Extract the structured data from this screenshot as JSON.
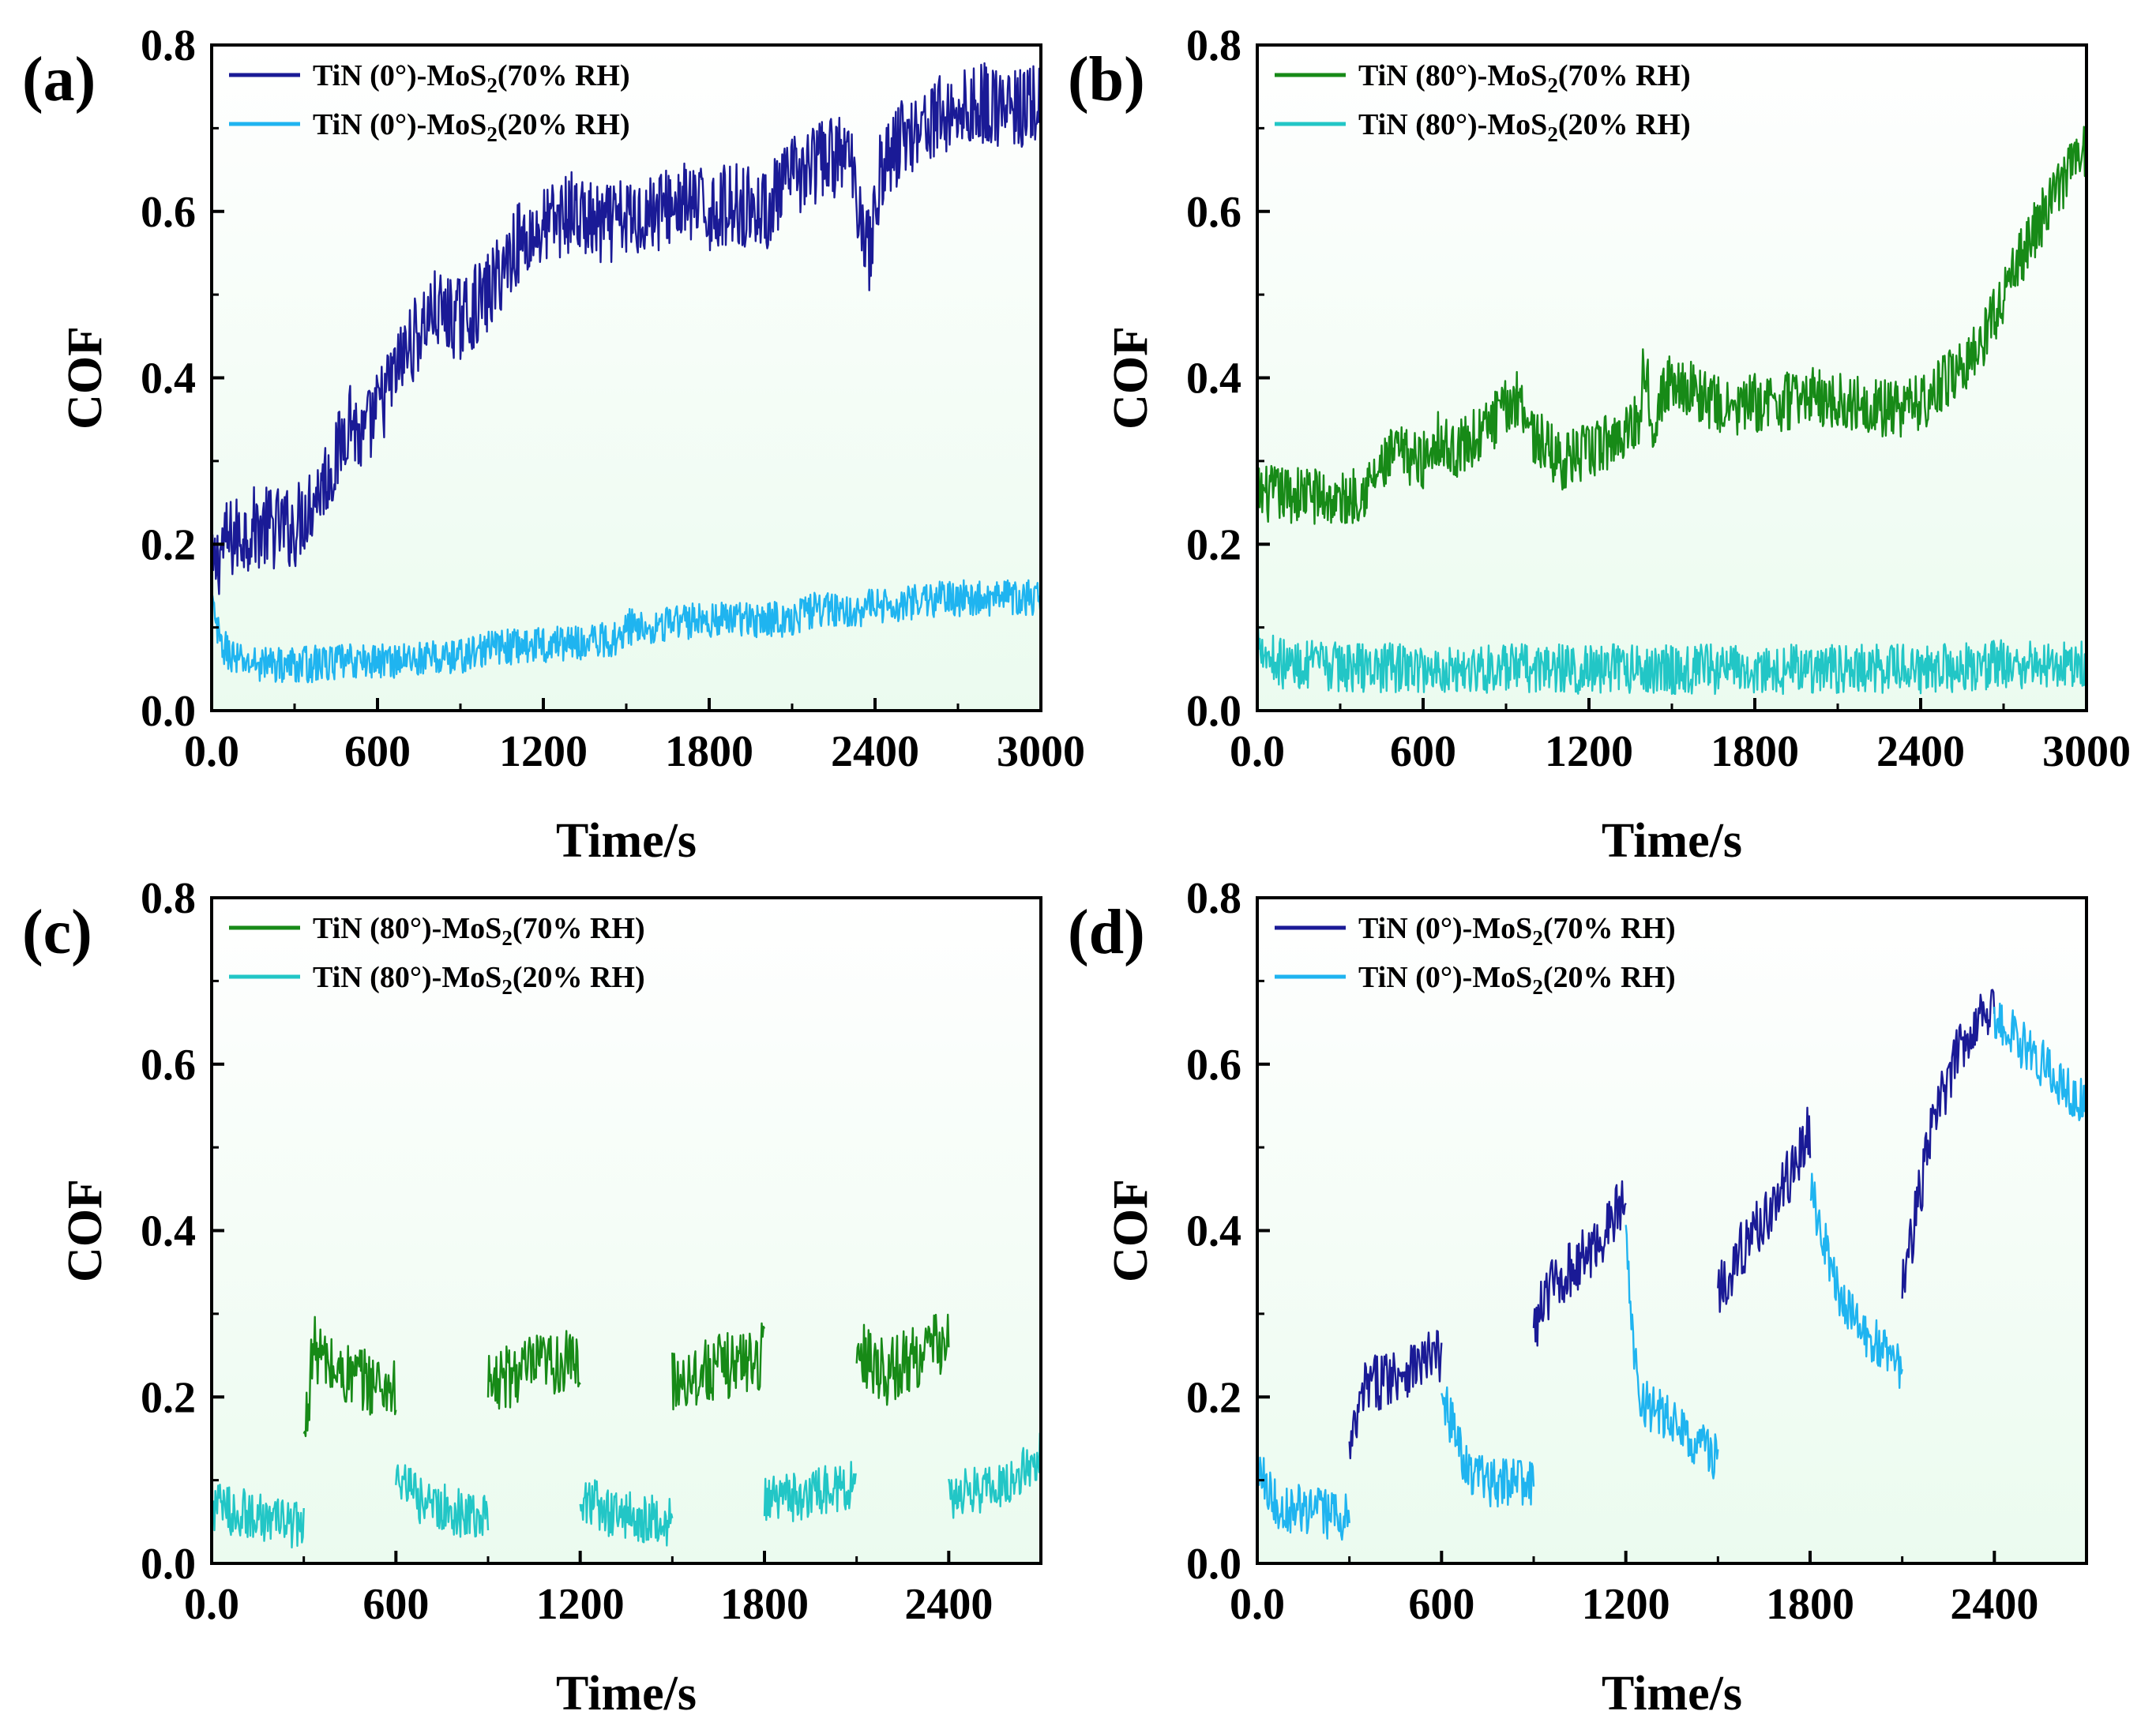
{
  "figure": {
    "panels": [
      {
        "id": "a",
        "panel_label": "(a)",
        "chart_data": {
          "type": "line",
          "xlabel": "Time/s",
          "ylabel": "COF",
          "xlim": [
            0,
            3000
          ],
          "ylim": [
            0,
            0.8
          ],
          "xticks": [
            0,
            600,
            1200,
            1800,
            2400,
            3000
          ],
          "yticks": [
            0.0,
            0.2,
            0.4,
            0.6,
            0.8
          ],
          "grid": false,
          "legend_position": "top-left",
          "background_color": "#ebfbef",
          "series": [
            {
              "name": "TiN (0°)-MoS2(70% RH)",
              "legend": {
                "prefix": "TiN (0°)-MoS",
                "sub": "2",
                "suffix": "(70% RH)"
              },
              "color": "#1a1a96",
              "band": 0.05,
              "points": [
                [
                  0,
                  0.16
                ],
                [
                  40,
                  0.2
                ],
                [
                  150,
                  0.22
                ],
                [
                  300,
                  0.22
                ],
                [
                  450,
                  0.3
                ],
                [
                  500,
                  0.36
                ],
                [
                  540,
                  0.32
                ],
                [
                  600,
                  0.36
                ],
                [
                  700,
                  0.43
                ],
                [
                  800,
                  0.48
                ],
                [
                  900,
                  0.47
                ],
                [
                  1000,
                  0.5
                ],
                [
                  1100,
                  0.56
                ],
                [
                  1200,
                  0.58
                ],
                [
                  1300,
                  0.6
                ],
                [
                  1400,
                  0.58
                ],
                [
                  1500,
                  0.59
                ],
                [
                  1600,
                  0.6
                ],
                [
                  1700,
                  0.61
                ],
                [
                  1800,
                  0.6
                ],
                [
                  1900,
                  0.61
                ],
                [
                  2000,
                  0.6
                ],
                [
                  2100,
                  0.64
                ],
                [
                  2200,
                  0.66
                ],
                [
                  2300,
                  0.67
                ],
                [
                  2350,
                  0.6
                ],
                [
                  2380,
                  0.55
                ],
                [
                  2420,
                  0.65
                ],
                [
                  2500,
                  0.69
                ],
                [
                  2600,
                  0.71
                ],
                [
                  2700,
                  0.72
                ],
                [
                  2800,
                  0.73
                ],
                [
                  2900,
                  0.72
                ],
                [
                  3000,
                  0.73
                ]
              ]
            },
            {
              "name": "TiN (0°)-MoS2(20% RH)",
              "legend": {
                "prefix": "TiN (0°)-MoS",
                "sub": "2",
                "suffix": "(20% RH)"
              },
              "color": "#1fb4f0",
              "band": 0.022,
              "points": [
                [
                  0,
                  0.13
                ],
                [
                  30,
                  0.08
                ],
                [
                  100,
                  0.058
                ],
                [
                  300,
                  0.055
                ],
                [
                  600,
                  0.06
                ],
                [
                  900,
                  0.065
                ],
                [
                  1000,
                  0.075
                ],
                [
                  1200,
                  0.08
                ],
                [
                  1450,
                  0.085
                ],
                [
                  1500,
                  0.1
                ],
                [
                  1800,
                  0.11
                ],
                [
                  2100,
                  0.11
                ],
                [
                  2150,
                  0.12
                ],
                [
                  2450,
                  0.125
                ],
                [
                  2500,
                  0.13
                ],
                [
                  2700,
                  0.135
                ],
                [
                  3000,
                  0.135
                ]
              ]
            }
          ]
        }
      },
      {
        "id": "b",
        "panel_label": "(b)",
        "chart_data": {
          "type": "line",
          "xlabel": "Time/s",
          "ylabel": "COF",
          "xlim": [
            0,
            3000
          ],
          "ylim": [
            0,
            0.8
          ],
          "xticks": [
            0,
            600,
            1200,
            1800,
            2400,
            3000
          ],
          "yticks": [
            0.0,
            0.2,
            0.4,
            0.6,
            0.8
          ],
          "grid": false,
          "legend_position": "top-left",
          "background_color": "#ebfbef",
          "series": [
            {
              "name": "TiN (80°)-MoS2(70% RH)",
              "legend": {
                "prefix": "TiN (80°)-MoS",
                "sub": "2",
                "suffix": "(70% RH)"
              },
              "color": "#178a17",
              "band": 0.035,
              "points": [
                [
                  0,
                  0.26
                ],
                [
                  200,
                  0.26
                ],
                [
                  300,
                  0.25
                ],
                [
                  400,
                  0.27
                ],
                [
                  500,
                  0.31
                ],
                [
                  600,
                  0.3
                ],
                [
                  650,
                  0.33
                ],
                [
                  700,
                  0.31
                ],
                [
                  800,
                  0.33
                ],
                [
                  950,
                  0.38
                ],
                [
                  1000,
                  0.33
                ],
                [
                  1100,
                  0.3
                ],
                [
                  1200,
                  0.31
                ],
                [
                  1300,
                  0.33
                ],
                [
                  1380,
                  0.35
                ],
                [
                  1400,
                  0.42
                ],
                [
                  1430,
                  0.35
                ],
                [
                  1500,
                  0.4
                ],
                [
                  1600,
                  0.38
                ],
                [
                  1700,
                  0.36
                ],
                [
                  1800,
                  0.37
                ],
                [
                  1900,
                  0.37
                ],
                [
                  2000,
                  0.38
                ],
                [
                  2100,
                  0.37
                ],
                [
                  2200,
                  0.37
                ],
                [
                  2300,
                  0.36
                ],
                [
                  2400,
                  0.37
                ],
                [
                  2500,
                  0.4
                ],
                [
                  2600,
                  0.43
                ],
                [
                  2700,
                  0.5
                ],
                [
                  2800,
                  0.57
                ],
                [
                  2900,
                  0.63
                ],
                [
                  3000,
                  0.68
                ]
              ]
            },
            {
              "name": "TiN (80°)-MoS2(20% RH)",
              "legend": {
                "prefix": "TiN (80°)-MoS",
                "sub": "2",
                "suffix": "(20% RH)"
              },
              "color": "#22c6c6",
              "band": 0.03,
              "points": [
                [
                  0,
                  0.1
                ],
                [
                  30,
                  0.07
                ],
                [
                  100,
                  0.055
                ],
                [
                  600,
                  0.05
                ],
                [
                  1200,
                  0.05
                ],
                [
                  1800,
                  0.05
                ],
                [
                  2400,
                  0.05
                ],
                [
                  2700,
                  0.055
                ],
                [
                  3000,
                  0.06
                ]
              ]
            }
          ]
        }
      },
      {
        "id": "c",
        "panel_label": "(c)",
        "chart_data": {
          "type": "line",
          "xlabel": "Time/s",
          "ylabel": "COF",
          "xlim": [
            0,
            2700
          ],
          "ylim": [
            0,
            0.8
          ],
          "xticks": [
            0,
            600,
            1200,
            1800,
            2400
          ],
          "yticks": [
            0.0,
            0.2,
            0.4,
            0.6,
            0.8
          ],
          "grid": false,
          "legend_position": "top-left",
          "background_color": "#ebfbef",
          "series": [
            {
              "name": "TiN (80°)-MoS2(70% RH)",
              "legend": {
                "prefix": "TiN (80°)-MoS",
                "sub": "2",
                "suffix": "(70% RH)"
              },
              "color": "#178a17",
              "band": 0.04,
              "segments": [
                [
                  [
                    300,
                    0.14
                  ],
                  [
                    330,
                    0.26
                  ],
                  [
                    400,
                    0.23
                  ],
                  [
                    600,
                    0.21
                  ]
                ],
                [
                  [
                    900,
                    0.21
                  ],
                  [
                    1000,
                    0.23
                  ],
                  [
                    1100,
                    0.24
                  ],
                  [
                    1200,
                    0.24
                  ]
                ],
                [
                  [
                    1500,
                    0.22
                  ],
                  [
                    1600,
                    0.23
                  ],
                  [
                    1800,
                    0.25
                  ]
                ],
                [
                  [
                    2100,
                    0.26
                  ],
                  [
                    2200,
                    0.23
                  ],
                  [
                    2300,
                    0.25
                  ],
                  [
                    2400,
                    0.27
                  ]
                ]
              ]
            },
            {
              "name": "TiN (80°)-MoS2(20% RH)",
              "legend": {
                "prefix": "TiN (80°)-MoS",
                "sub": "2",
                "suffix": "(20% RH)"
              },
              "color": "#22c6c6",
              "band": 0.03,
              "segments": [
                [
                  [
                    0,
                    0.07
                  ],
                  [
                    100,
                    0.06
                  ],
                  [
                    300,
                    0.045
                  ]
                ],
                [
                  [
                    600,
                    0.1
                  ],
                  [
                    700,
                    0.07
                  ],
                  [
                    900,
                    0.055
                  ]
                ],
                [
                  [
                    1200,
                    0.08
                  ],
                  [
                    1300,
                    0.06
                  ],
                  [
                    1500,
                    0.05
                  ]
                ],
                [
                  [
                    1800,
                    0.075
                  ],
                  [
                    1900,
                    0.08
                  ],
                  [
                    2100,
                    0.095
                  ]
                ],
                [
                  [
                    2400,
                    0.08
                  ],
                  [
                    2500,
                    0.09
                  ],
                  [
                    2600,
                    0.1
                  ],
                  [
                    2700,
                    0.13
                  ]
                ]
              ]
            }
          ]
        }
      },
      {
        "id": "d",
        "panel_label": "(d)",
        "chart_data": {
          "type": "line",
          "xlabel": "Time/s",
          "ylabel": "COF",
          "xlim": [
            0,
            2700
          ],
          "ylim": [
            0,
            0.8
          ],
          "xticks": [
            0,
            600,
            1200,
            1800,
            2400
          ],
          "yticks": [
            0.0,
            0.2,
            0.4,
            0.6,
            0.8
          ],
          "grid": false,
          "legend_position": "top-left",
          "background_color": "#ebfbef",
          "series": [
            {
              "name": "TiN (0°)-MoS2(70% RH)",
              "legend": {
                "prefix": "TiN (0°)-MoS",
                "sub": "2",
                "suffix": "(70% RH)"
              },
              "color": "#1a1a96",
              "band": 0.035,
              "segments": [
                [
                  [
                    300,
                    0.13
                  ],
                  [
                    350,
                    0.21
                  ],
                  [
                    450,
                    0.23
                  ],
                  [
                    600,
                    0.25
                  ]
                ],
                [
                  [
                    900,
                    0.28
                  ],
                  [
                    950,
                    0.33
                  ],
                  [
                    1100,
                    0.38
                  ],
                  [
                    1200,
                    0.44
                  ]
                ],
                [
                  [
                    1500,
                    0.33
                  ],
                  [
                    1600,
                    0.39
                  ],
                  [
                    1700,
                    0.44
                  ],
                  [
                    1800,
                    0.52
                  ]
                ],
                [
                  [
                    2100,
                    0.33
                  ],
                  [
                    2200,
                    0.53
                  ],
                  [
                    2300,
                    0.63
                  ],
                  [
                    2400,
                    0.68
                  ]
                ]
              ]
            },
            {
              "name": "TiN (0°)-MoS2(20% RH)",
              "legend": {
                "prefix": "TiN (0°)-MoS",
                "sub": "2",
                "suffix": "(20% RH)"
              },
              "color": "#1fb4f0",
              "band": 0.03,
              "segments": [
                [
                  [
                    0,
                    0.13
                  ],
                  [
                    60,
                    0.07
                  ],
                  [
                    300,
                    0.055
                  ]
                ],
                [
                  [
                    600,
                    0.2
                  ],
                  [
                    700,
                    0.1
                  ],
                  [
                    900,
                    0.095
                  ]
                ],
                [
                  [
                    1200,
                    0.38
                  ],
                  [
                    1240,
                    0.2
                  ],
                  [
                    1500,
                    0.125
                  ]
                ],
                [
                  [
                    1800,
                    0.45
                  ],
                  [
                    1900,
                    0.31
                  ],
                  [
                    2100,
                    0.23
                  ]
                ],
                [
                  [
                    2400,
                    0.66
                  ],
                  [
                    2500,
                    0.62
                  ],
                  [
                    2700,
                    0.55
                  ]
                ]
              ]
            }
          ]
        }
      }
    ]
  }
}
